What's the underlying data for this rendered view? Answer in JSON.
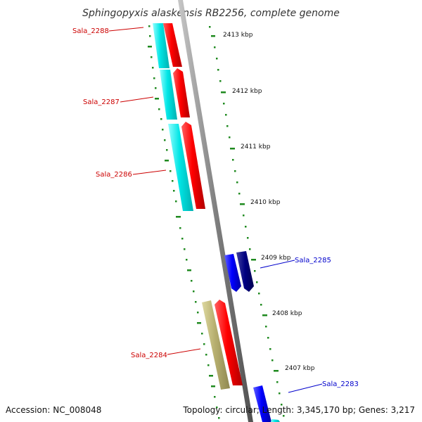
{
  "title": "Sphingopyxis alaskensis RB2256, complete genome",
  "footer": {
    "accession": "Accession: NC_008048",
    "topology": "Topology: circular; Length: 3,345,170 bp; Genes: 3,217"
  },
  "colors": {
    "cds_forward": "#ff0000",
    "cds_reverse": "#0000ff",
    "cds_reverse_dark": "#000080",
    "orf_cyan": "#00e5e5",
    "orf_khaki": "#b8b070",
    "backbone": "#808080",
    "tick": "#1f8a1f",
    "label_red": "#cc0000",
    "label_blue": "#0000cc"
  },
  "tick_labels": [
    "2413 kbp",
    "2412 kbp",
    "2411 kbp",
    "2410 kbp",
    "2409 kbp",
    "2408 kbp",
    "2407 kbp"
  ],
  "genes": [
    {
      "name": "Sala_2288"
    },
    {
      "name": "Sala_2287"
    },
    {
      "name": "Sala_2286"
    },
    {
      "name": "Sala_2285"
    },
    {
      "name": "Sala_2284"
    },
    {
      "name": "Sala_2283"
    }
  ]
}
